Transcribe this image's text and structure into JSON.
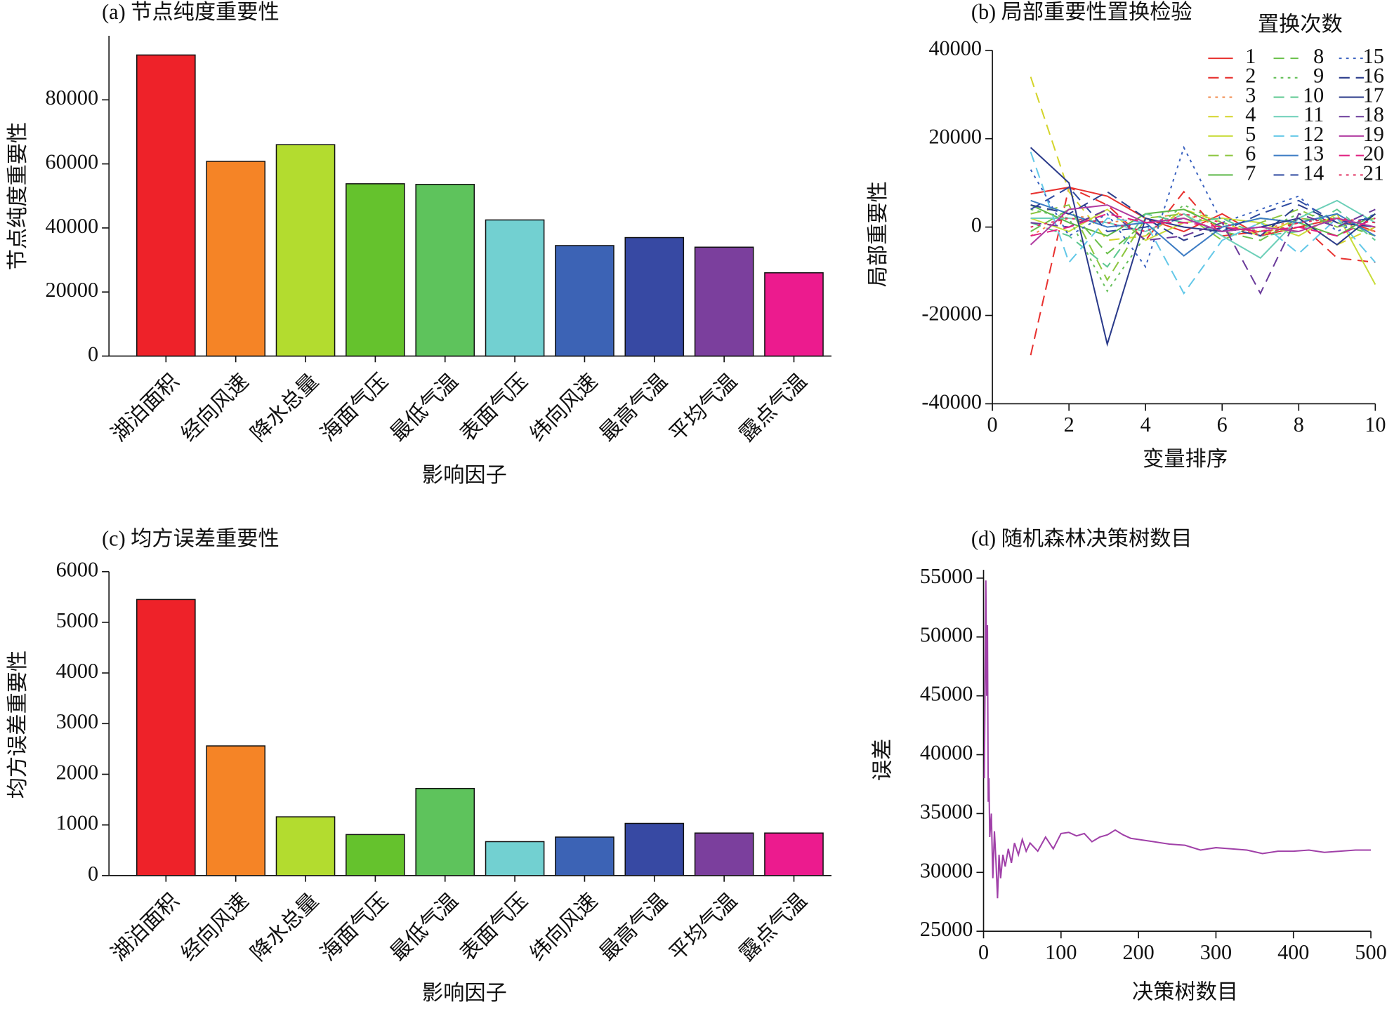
{
  "chart_data": [
    {
      "type": "bar",
      "title": "(a) 节点纯度重要性",
      "x_label": "影响因子",
      "y_label": "节点纯度重要性",
      "categories": [
        "湖泊面积",
        "经向风速",
        "降水总量",
        "海面气压",
        "最低气温",
        "表面气压",
        "纬向风速",
        "最高气温",
        "平均气温",
        "露点气温"
      ],
      "values": [
        94000,
        60800,
        66000,
        53800,
        53600,
        42500,
        34500,
        37000,
        34000,
        26000
      ],
      "colors": [
        "#ee2229",
        "#f58426",
        "#b3dc2f",
        "#65c22d",
        "#5ec35c",
        "#72d0d1",
        "#3c63b5",
        "#3749a3",
        "#7b3f9d",
        "#ec1b8e"
      ],
      "ylim": [
        0,
        100000
      ],
      "yticks": [
        0,
        20000,
        40000,
        60000,
        80000
      ]
    },
    {
      "type": "line",
      "title": "(b) 局部重要性置换检验",
      "x_label": "变量排序",
      "y_label": "局部重要性",
      "legend_title": "置换次数",
      "x": [
        1,
        2,
        3,
        4,
        5,
        6,
        7,
        8,
        9,
        10
      ],
      "xlim": [
        0,
        10
      ],
      "xticks": [
        0,
        2,
        4,
        6,
        8,
        10
      ],
      "ylim": [
        -40000,
        40000
      ],
      "yticks": [
        -40000,
        -20000,
        0,
        20000,
        40000
      ],
      "series": [
        {
          "name": "1",
          "color": "#e8312f",
          "dash": "solid",
          "values": [
            7500,
            9000,
            7000,
            2000,
            -1000,
            3000,
            -2000,
            0,
            2000,
            -1000
          ]
        },
        {
          "name": "2",
          "color": "#e8312f",
          "dash": "dashed",
          "values": [
            -29000,
            9000,
            5000,
            -3000,
            8000,
            -2000,
            -1000,
            1000,
            -7000,
            -8000
          ]
        },
        {
          "name": "3",
          "color": "#f08a4b",
          "dash": "dotted",
          "values": [
            -2000,
            3000,
            1000,
            2000,
            3000,
            0,
            -1000,
            2000,
            1000,
            -1000
          ]
        },
        {
          "name": "4",
          "color": "#d4d42a",
          "dash": "dashed",
          "values": [
            34000,
            8000,
            -3000,
            -2000,
            4000,
            1000,
            -2000,
            2000,
            -4000,
            0
          ]
        },
        {
          "name": "5",
          "color": "#c8dc3a",
          "dash": "solid",
          "values": [
            2000,
            -1000,
            4000,
            -3000,
            1000,
            2000,
            1000,
            -2000,
            3000,
            -13000
          ]
        },
        {
          "name": "6",
          "color": "#8cc63f",
          "dash": "dashed",
          "values": [
            3000,
            5000,
            -12000,
            2000,
            3000,
            -3000,
            1000,
            4000,
            0,
            2000
          ]
        },
        {
          "name": "7",
          "color": "#5cb848",
          "dash": "solid",
          "values": [
            5000,
            1000,
            -2000,
            3000,
            4000,
            0,
            2000,
            1000,
            -2000,
            3000
          ]
        },
        {
          "name": "8",
          "color": "#6ac04a",
          "dash": "dashed",
          "values": [
            -1000,
            4000,
            -6000,
            1000,
            2000,
            -1000,
            -3000,
            2000,
            1000,
            -2000
          ]
        },
        {
          "name": "9",
          "color": "#66c05a",
          "dash": "dotted",
          "values": [
            4000,
            2000,
            -14500,
            -2000,
            5000,
            1000,
            -1000,
            3000,
            2000,
            0
          ]
        },
        {
          "name": "10",
          "color": "#5cc890",
          "dash": "dashed",
          "values": [
            1000,
            -2000,
            -9000,
            3000,
            1000,
            2000,
            -2000,
            -1000,
            4000,
            -3000
          ]
        },
        {
          "name": "11",
          "color": "#6ccfb8",
          "dash": "solid",
          "values": [
            2000,
            2000,
            1000,
            -1000,
            3000,
            -2000,
            -7000,
            2000,
            6000,
            1000
          ]
        },
        {
          "name": "12",
          "color": "#63c8e8",
          "dash": "dashed",
          "values": [
            17000,
            -8000,
            2000,
            1000,
            -15000,
            -3000,
            1000,
            -6000,
            2000,
            -8000
          ]
        },
        {
          "name": "13",
          "color": "#3d7cc4",
          "dash": "solid",
          "values": [
            6000,
            3000,
            0,
            1000,
            -6500,
            0,
            2000,
            1000,
            3000,
            -2000
          ]
        },
        {
          "name": "14",
          "color": "#2e4aa0",
          "dash": "dashed",
          "values": [
            4000,
            9000,
            -1000,
            0,
            2000,
            -1000,
            3000,
            6000,
            1000,
            2000
          ]
        },
        {
          "name": "15",
          "color": "#3a62c0",
          "dash": "dotted",
          "values": [
            13000,
            -2000,
            3000,
            -9000,
            18000,
            1000,
            4000,
            7000,
            -1000,
            3000
          ]
        },
        {
          "name": "16",
          "color": "#2c3e8c",
          "dash": "dashed",
          "values": [
            5000,
            3000,
            8000,
            2000,
            -3000,
            0,
            -2000,
            5000,
            1000,
            0
          ]
        },
        {
          "name": "17",
          "color": "#2a3a8a",
          "dash": "solid",
          "values": [
            18000,
            10000,
            -26500,
            2000,
            0,
            -1000,
            0,
            2000,
            -4000,
            3000
          ]
        },
        {
          "name": "18",
          "color": "#6a3a9a",
          "dash": "dashed",
          "values": [
            1000,
            0,
            4000,
            -3000,
            -2000,
            1000,
            -15000,
            3000,
            0,
            4000
          ]
        },
        {
          "name": "19",
          "color": "#b03aa0",
          "dash": "solid",
          "values": [
            -4000,
            4000,
            5000,
            1000,
            2000,
            -1000,
            0,
            -1000,
            2000,
            0
          ]
        },
        {
          "name": "20",
          "color": "#e02080",
          "dash": "dashed",
          "values": [
            -2000,
            0,
            3000,
            1000,
            1000,
            0,
            -1000,
            0,
            -2000,
            2000
          ]
        },
        {
          "name": "21",
          "color": "#e03060",
          "dash": "dotted",
          "values": [
            0,
            2000,
            1000,
            -1000,
            3000,
            1000,
            -2000,
            1000,
            2000,
            1000
          ]
        }
      ]
    },
    {
      "type": "bar",
      "title": "(c) 均方误差重要性",
      "x_label": "影响因子",
      "y_label": "均方误差重要性",
      "categories": [
        "湖泊面积",
        "经向风速",
        "降水总量",
        "海面气压",
        "最低气温",
        "表面气压",
        "纬向风速",
        "最高气温",
        "平均气温",
        "露点气温"
      ],
      "values": [
        5450,
        2560,
        1160,
        810,
        1720,
        670,
        760,
        1030,
        840,
        840
      ],
      "colors": [
        "#ee2229",
        "#f58426",
        "#b3dc2f",
        "#65c22d",
        "#5ec35c",
        "#72d0d1",
        "#3c63b5",
        "#3749a3",
        "#7b3f9d",
        "#ec1b8e"
      ],
      "ylim": [
        0,
        6000
      ],
      "yticks": [
        0,
        1000,
        2000,
        3000,
        4000,
        5000,
        6000
      ]
    },
    {
      "type": "line",
      "title": "(d) 随机森林决策树数目",
      "x_label": "决策树数目",
      "y_label": "误差",
      "x": [
        1,
        2,
        3,
        4,
        5,
        6,
        7,
        8,
        10,
        12,
        14,
        16,
        18,
        20,
        22,
        25,
        28,
        32,
        36,
        40,
        45,
        50,
        55,
        60,
        70,
        80,
        90,
        100,
        110,
        120,
        130,
        140,
        150,
        160,
        170,
        180,
        190,
        200,
        220,
        240,
        260,
        280,
        300,
        320,
        340,
        360,
        380,
        400,
        420,
        440,
        460,
        480,
        500
      ],
      "xlim": [
        0,
        500
      ],
      "xticks": [
        0,
        100,
        200,
        300,
        400,
        500
      ],
      "ylim": [
        25000,
        55700
      ],
      "yticks": [
        25000,
        30000,
        35000,
        40000,
        45000,
        50000,
        55000
      ],
      "series": [
        {
          "color": "#a040a8",
          "dash": "solid",
          "values": [
            38000,
            47000,
            54800,
            45000,
            51000,
            36000,
            38000,
            33000,
            35000,
            29500,
            33500,
            31000,
            27800,
            31500,
            29500,
            31500,
            30500,
            32000,
            30800,
            32500,
            31500,
            32800,
            31800,
            32500,
            31800,
            33000,
            32000,
            33300,
            33400,
            33100,
            33300,
            32600,
            33000,
            33200,
            33600,
            33200,
            32900,
            32800,
            32600,
            32400,
            32300,
            31900,
            32100,
            32000,
            31900,
            31600,
            31800,
            31800,
            31900,
            31700,
            31800,
            31900,
            31900
          ]
        }
      ]
    }
  ]
}
